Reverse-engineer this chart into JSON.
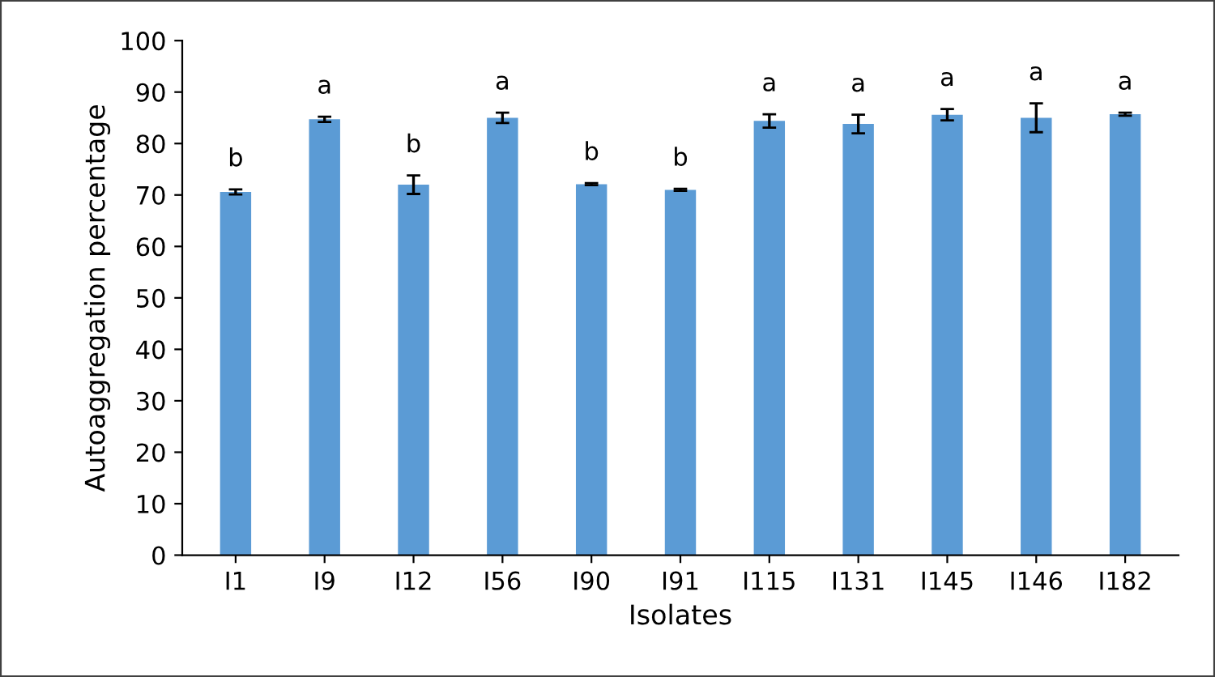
{
  "chart_data": {
    "type": "bar",
    "xlabel": "Isolates",
    "ylabel": "Autoaggregation percentage",
    "categories": [
      "I1",
      "I9",
      "I12",
      "I56",
      "I90",
      "I91",
      "I115",
      "I131",
      "I145",
      "I146",
      "I182"
    ],
    "values": [
      70.6,
      84.7,
      72.0,
      85.0,
      72.1,
      71.0,
      84.4,
      83.8,
      85.6,
      85.0,
      85.7
    ],
    "errors": [
      0.5,
      0.5,
      1.8,
      1.0,
      0.2,
      0.2,
      1.3,
      1.8,
      1.1,
      2.8,
      0.3
    ],
    "color": "#5b9bd5",
    "ylim": [
      0,
      100
    ],
    "yticks": [
      0,
      10,
      20,
      30,
      40,
      50,
      60,
      70,
      80,
      90,
      100
    ],
    "grid": false,
    "annotations": [
      "b",
      "a",
      "b",
      "a",
      "b",
      "b",
      "a",
      "a",
      "a",
      "a",
      "a"
    ]
  }
}
